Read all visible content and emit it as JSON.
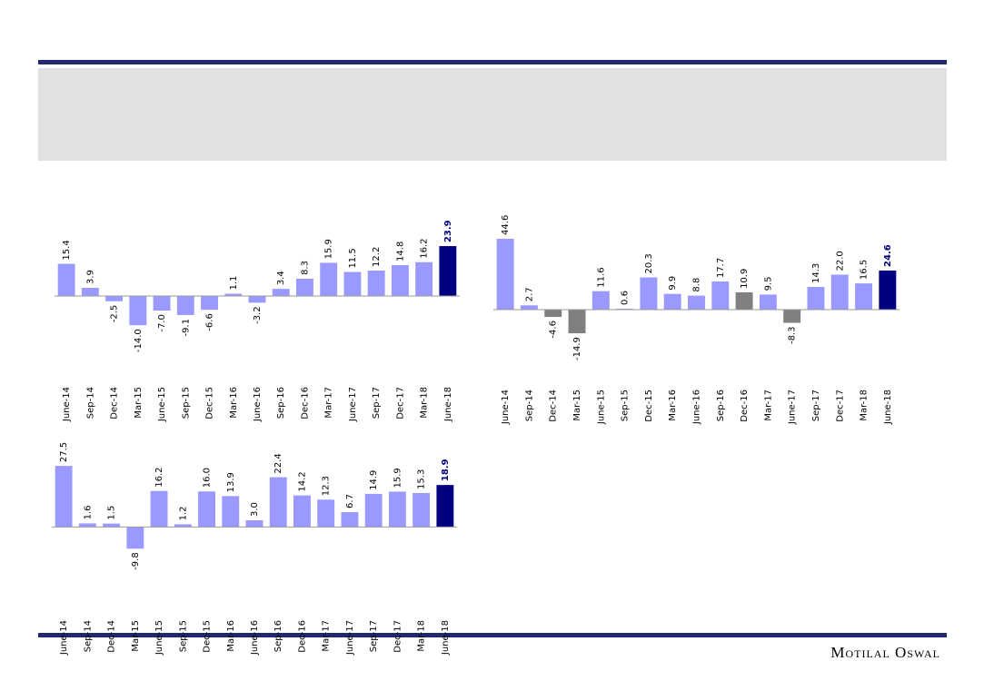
{
  "chart_data": [
    {
      "type": "bar",
      "categories": [
        "June-14",
        "Sep-14",
        "Dec-14",
        "Mar-15",
        "June-15",
        "Sep-15",
        "Dec-15",
        "Mar-16",
        "June-16",
        "Sep-16",
        "Dec-16",
        "Mar-17",
        "June-17",
        "Sep-17",
        "Dec-17",
        "Mar-18",
        "June-18"
      ],
      "values": [
        15.4,
        3.9,
        -2.5,
        -14.0,
        -7.0,
        -9.1,
        -6.6,
        1.1,
        -3.2,
        3.4,
        8.3,
        15.9,
        11.5,
        12.2,
        14.8,
        16.2,
        23.9
      ],
      "value_labels": [
        "15.4",
        "3.9",
        "-2.5",
        "-14.0",
        "-7.0",
        "-9.1",
        "-6.6",
        "1.1",
        "-3.2",
        "3.4",
        "8.3",
        "15.9",
        "11.5",
        "12.2",
        "14.8",
        "16.2",
        "23.9"
      ],
      "colors": [
        "#9999ff",
        "#9999ff",
        "#9999ff",
        "#9999ff",
        "#9999ff",
        "#9999ff",
        "#9999ff",
        "#9999ff",
        "#9999ff",
        "#9999ff",
        "#9999ff",
        "#9999ff",
        "#9999ff",
        "#9999ff",
        "#9999ff",
        "#9999ff",
        "#000080"
      ],
      "ylim": [
        -20,
        40
      ]
    },
    {
      "type": "bar",
      "categories": [
        "June-14",
        "Sep-14",
        "Dec-14",
        "Mar-15",
        "June-15",
        "Sep-15",
        "Dec-15",
        "Mar-16",
        "June-16",
        "Sep-16",
        "Dec-16",
        "Mar-17",
        "June-17",
        "Sep-17",
        "Dec-17",
        "Mar-18",
        "June-18"
      ],
      "values": [
        44.6,
        2.7,
        -4.6,
        -14.9,
        11.6,
        0.6,
        20.3,
        9.9,
        8.8,
        17.7,
        10.9,
        9.5,
        -8.3,
        14.3,
        22.0,
        16.5,
        24.6
      ],
      "value_labels": [
        "44.6",
        "2.7",
        "-4.6",
        "-14.9",
        "11.6",
        "0.6",
        "20.3",
        "9.9",
        "8.8",
        "17.7",
        "10.9",
        "9.5",
        "-8.3",
        "14.3",
        "22.0",
        "16.5",
        "24.6"
      ],
      "colors": [
        "#9999ff",
        "#9999ff",
        "#808080",
        "#808080",
        "#9999ff",
        "#9999ff",
        "#9999ff",
        "#9999ff",
        "#9999ff",
        "#9999ff",
        "#808080",
        "#9999ff",
        "#808080",
        "#9999ff",
        "#9999ff",
        "#9999ff",
        "#000080"
      ],
      "ylim": [
        -20,
        50
      ]
    },
    {
      "type": "bar",
      "categories": [
        "June-14",
        "Sep-14",
        "Dec-14",
        "Mar-15",
        "June-15",
        "Sep-15",
        "Dec-15",
        "Mar-16",
        "June-16",
        "Sep-16",
        "Dec-16",
        "Mar-17",
        "June-17",
        "Sep-17",
        "Dec-17",
        "Mar-18",
        "June-18"
      ],
      "values": [
        27.5,
        1.6,
        1.5,
        -9.8,
        16.2,
        1.2,
        16.0,
        13.9,
        3.0,
        22.4,
        14.2,
        12.3,
        6.7,
        14.9,
        15.9,
        15.3,
        18.9
      ],
      "value_labels": [
        "27.5",
        "1.6",
        "1.5",
        "-9.8",
        "16.2",
        "1.2",
        "16.0",
        "13.9",
        "3.0",
        "22.4",
        "14.2",
        "12.3",
        "6.7",
        "14.9",
        "15.9",
        "15.3",
        "18.9"
      ],
      "colors": [
        "#9999ff",
        "#9999ff",
        "#9999ff",
        "#9999ff",
        "#9999ff",
        "#9999ff",
        "#9999ff",
        "#9999ff",
        "#9999ff",
        "#9999ff",
        "#9999ff",
        "#9999ff",
        "#9999ff",
        "#9999ff",
        "#9999ff",
        "#9999ff",
        "#000080"
      ],
      "ylim": [
        -15,
        30
      ]
    }
  ],
  "footer": {
    "brand": "Motilal Oswal"
  }
}
